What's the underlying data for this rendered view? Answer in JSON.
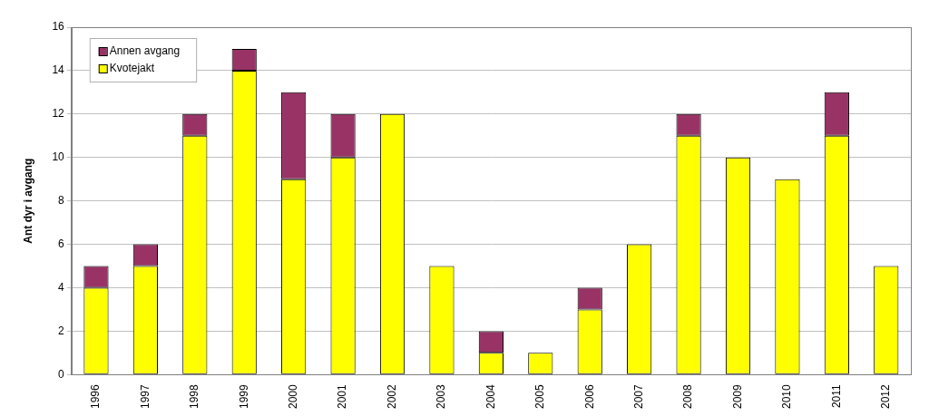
{
  "chart_data": {
    "type": "bar",
    "stacked": true,
    "y_label": "Ant dyr i avgang",
    "categories": [
      "1996",
      "1997",
      "1998",
      "1999",
      "2000",
      "2001",
      "2002",
      "2003",
      "2004",
      "2005",
      "2006",
      "2007",
      "2008",
      "2009",
      "2010",
      "2011",
      "2012"
    ],
    "series": [
      {
        "name": "Kvotejakt",
        "color": "#ffff00",
        "values": [
          4,
          5,
          11,
          14,
          9,
          10,
          12,
          5,
          1,
          1,
          3,
          6,
          11,
          10,
          9,
          11,
          5
        ]
      },
      {
        "name": "Annen avgang",
        "color": "#993366",
        "values": [
          1,
          1,
          1,
          1,
          4,
          2,
          0,
          0,
          1,
          0,
          1,
          0,
          1,
          0,
          0,
          2,
          0
        ]
      }
    ],
    "ylim": [
      0,
      16
    ],
    "yticks": [
      0,
      2,
      4,
      6,
      8,
      10,
      12,
      14,
      16
    ],
    "grid": true,
    "legend": "upper left"
  }
}
